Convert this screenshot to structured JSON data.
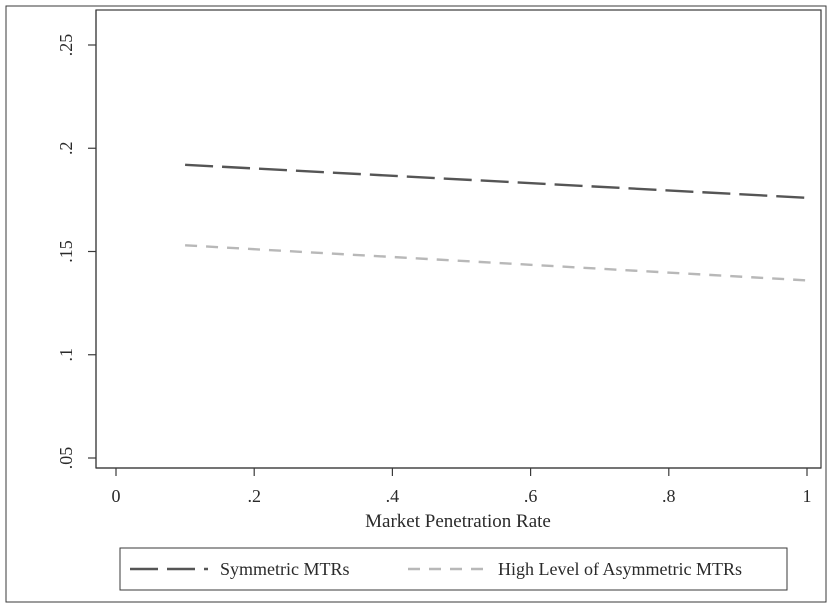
{
  "chart_data": {
    "type": "line",
    "xlabel": "Market Penetration Rate",
    "ylabel": "",
    "xlim": [
      0,
      1
    ],
    "ylim": [
      0.05,
      0.25
    ],
    "x_ticks": [
      {
        "value": 0,
        "label": "0"
      },
      {
        "value": 0.2,
        "label": ".2"
      },
      {
        "value": 0.4,
        "label": ".4"
      },
      {
        "value": 0.6,
        "label": ".6"
      },
      {
        "value": 0.8,
        "label": ".8"
      },
      {
        "value": 1,
        "label": "1"
      }
    ],
    "y_ticks": [
      {
        "value": 0.05,
        "label": ".05"
      },
      {
        "value": 0.1,
        "label": ".1"
      },
      {
        "value": 0.15,
        "label": ".15"
      },
      {
        "value": 0.2,
        "label": ".2"
      },
      {
        "value": 0.25,
        "label": ".25"
      }
    ],
    "grid": false,
    "legend_position": "bottom",
    "series": [
      {
        "name": "Symmetric MTRs",
        "color": "#555555",
        "style": "long-dash",
        "x": [
          0.1,
          1.0
        ],
        "y": [
          0.192,
          0.176
        ]
      },
      {
        "name": "High Level of Asymmetric MTRs",
        "color": "#b8b8b8",
        "style": "short-dash",
        "x": [
          0.1,
          1.0
        ],
        "y": [
          0.153,
          0.136
        ]
      }
    ]
  }
}
